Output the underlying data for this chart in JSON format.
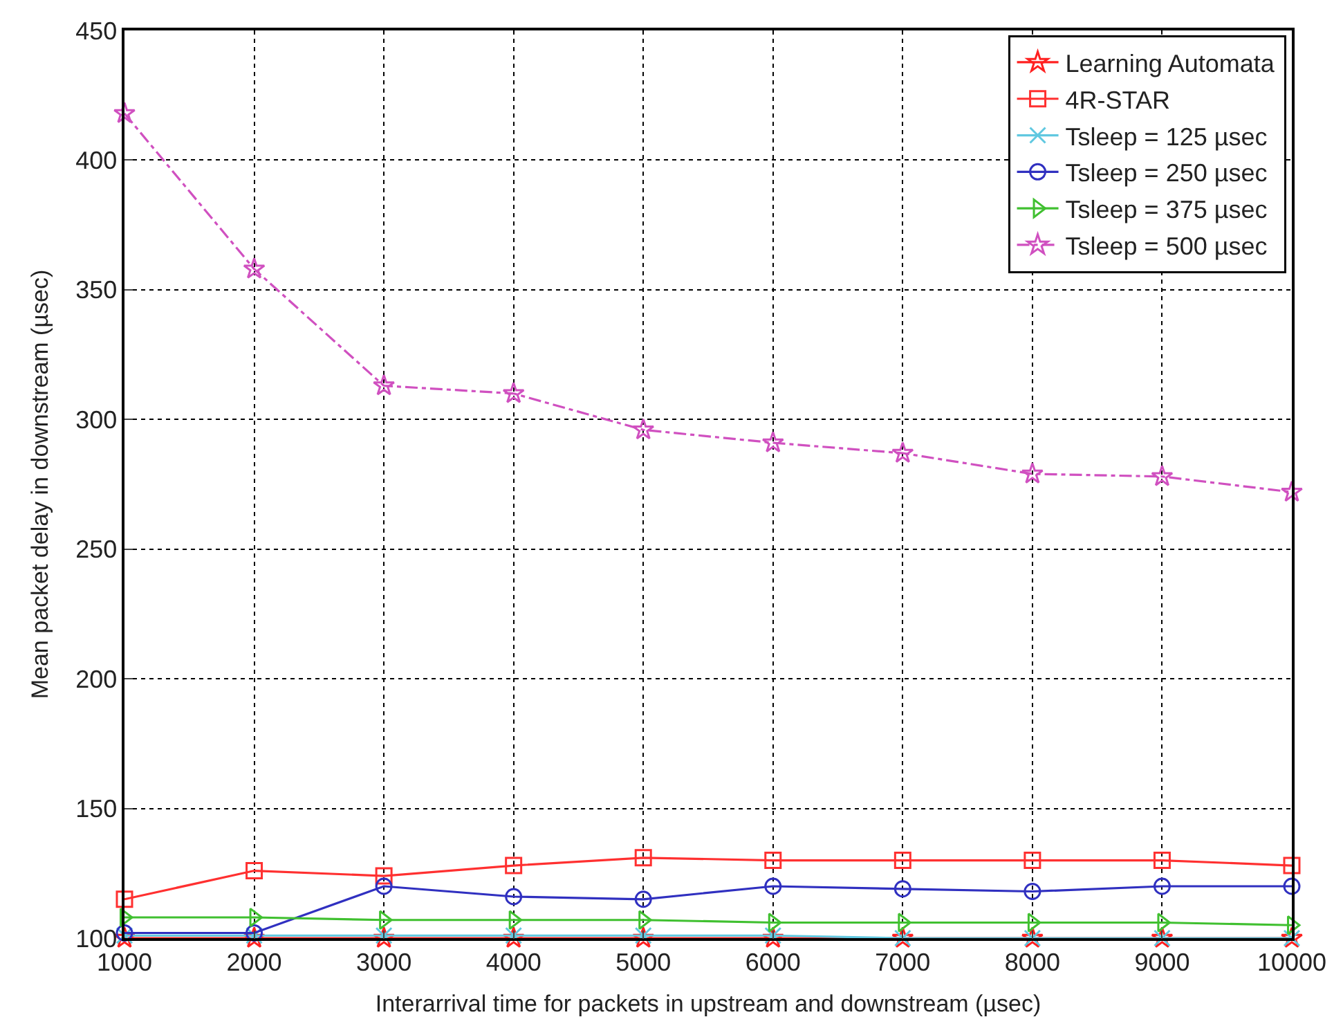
{
  "chart_data": {
    "type": "line",
    "xlabel": "Interarrival time for packets in upstream and downstream (µsec)",
    "ylabel": "Mean packet delay in downstream (µsec)",
    "x": [
      1000,
      2000,
      3000,
      4000,
      5000,
      6000,
      7000,
      8000,
      9000,
      10000
    ],
    "xlim": [
      1000,
      10000
    ],
    "xticks": [
      1000,
      2000,
      3000,
      4000,
      5000,
      6000,
      7000,
      8000,
      9000,
      10000
    ],
    "ylim": [
      100,
      450
    ],
    "yticks": [
      100,
      150,
      200,
      250,
      300,
      350,
      400,
      450
    ],
    "grid": true,
    "legend": "top right",
    "series": [
      {
        "name": "Learning Automata",
        "color": "#ff2020",
        "marker": "star",
        "line_style": "solid",
        "values": [
          100,
          100,
          100,
          100,
          100,
          100,
          100,
          100,
          100,
          100
        ]
      },
      {
        "name": "4R-STAR",
        "color": "#ff3030",
        "marker": "square",
        "line_style": "solid",
        "values": [
          115,
          126,
          124,
          128,
          131,
          130,
          130,
          130,
          130,
          128
        ]
      },
      {
        "name": "Tsleep = 125 µsec",
        "color": "#60c8e0",
        "marker": "cross",
        "line_style": "solid",
        "values": [
          101,
          101,
          101,
          101,
          101,
          101,
          100,
          100,
          100,
          100
        ]
      },
      {
        "name": "Tsleep = 250 µsec",
        "color": "#3030c0",
        "marker": "circle",
        "line_style": "solid",
        "values": [
          102,
          102,
          120,
          116,
          115,
          120,
          119,
          118,
          120,
          120
        ]
      },
      {
        "name": "Tsleep = 375 µsec",
        "color": "#40c030",
        "marker": "triangle",
        "line_style": "solid",
        "values": [
          108,
          108,
          107,
          107,
          107,
          106,
          106,
          106,
          106,
          105
        ]
      },
      {
        "name": "Tsleep = 500 µsec",
        "color": "#d050c0",
        "marker": "star",
        "line_style": "dashdot",
        "values": [
          418,
          358,
          313,
          310,
          296,
          291,
          287,
          279,
          278,
          272
        ]
      }
    ]
  }
}
